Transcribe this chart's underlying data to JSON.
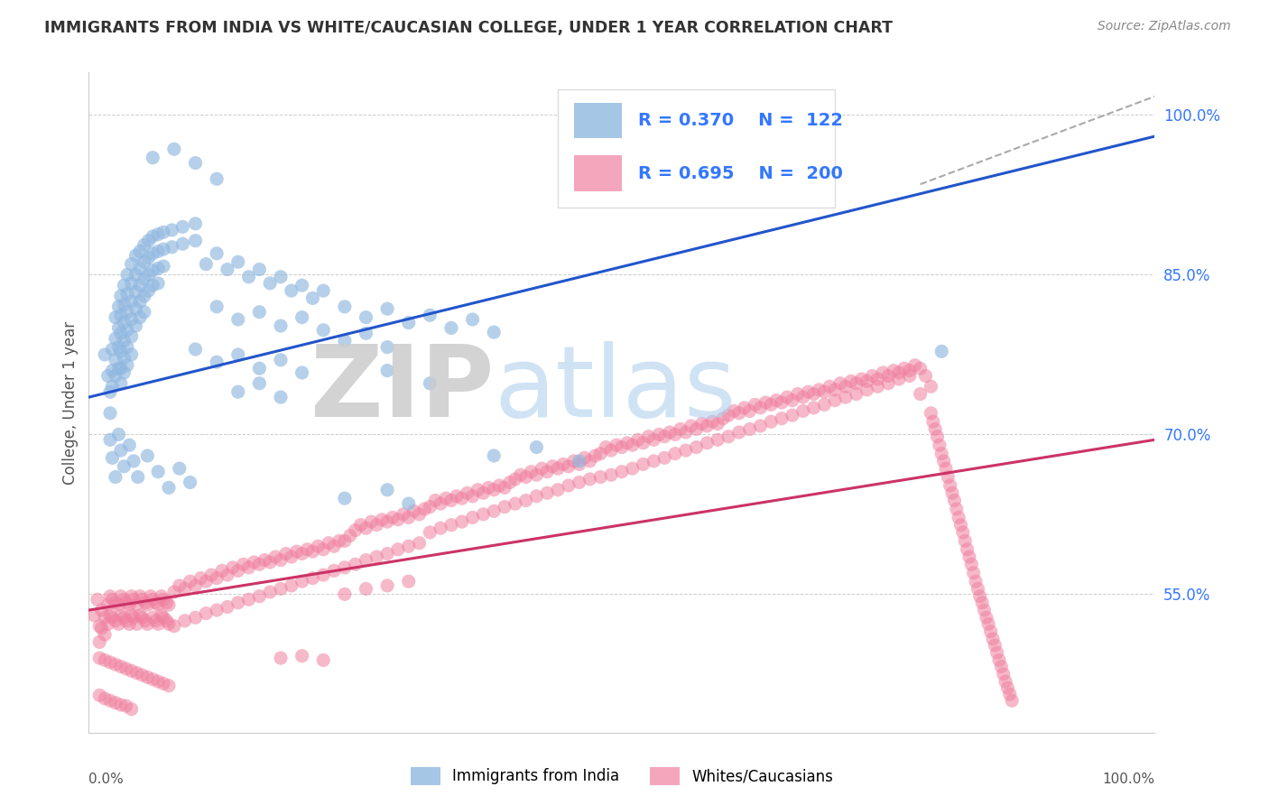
{
  "title": "IMMIGRANTS FROM INDIA VS WHITE/CAUCASIAN COLLEGE, UNDER 1 YEAR CORRELATION CHART",
  "source": "Source: ZipAtlas.com",
  "ylabel": "College, Under 1 year",
  "blue_R": "0.370",
  "blue_N": "122",
  "pink_R": "0.695",
  "pink_N": "200",
  "blue_color": "#90B8E0",
  "pink_color": "#F080A0",
  "blue_line_color": "#2255CC",
  "pink_line_color": "#CC3366",
  "legend_text_color": "#3377FF",
  "background_color": "#FFFFFF",
  "xlim": [
    0.0,
    1.0
  ],
  "ylim": [
    0.42,
    1.04
  ],
  "yticks": [
    0.55,
    0.7,
    0.85,
    1.0
  ],
  "ytick_labels": [
    "55.0%",
    "70.0%",
    "85.0%",
    "100.0%"
  ],
  "blue_line_x": [
    0.0,
    1.0
  ],
  "blue_line_y": [
    0.735,
    0.98
  ],
  "pink_line_x": [
    0.0,
    1.0
  ],
  "pink_line_y": [
    0.535,
    0.695
  ],
  "dashed_line_x": [
    0.78,
    1.02
  ],
  "dashed_line_y": [
    0.935,
    1.025
  ],
  "blue_scatter": [
    [
      0.015,
      0.775
    ],
    [
      0.018,
      0.755
    ],
    [
      0.02,
      0.74
    ],
    [
      0.02,
      0.72
    ],
    [
      0.022,
      0.78
    ],
    [
      0.022,
      0.76
    ],
    [
      0.022,
      0.745
    ],
    [
      0.025,
      0.81
    ],
    [
      0.025,
      0.79
    ],
    [
      0.025,
      0.77
    ],
    [
      0.025,
      0.755
    ],
    [
      0.028,
      0.82
    ],
    [
      0.028,
      0.8
    ],
    [
      0.028,
      0.782
    ],
    [
      0.028,
      0.762
    ],
    [
      0.03,
      0.83
    ],
    [
      0.03,
      0.812
    ],
    [
      0.03,
      0.795
    ],
    [
      0.03,
      0.778
    ],
    [
      0.03,
      0.762
    ],
    [
      0.03,
      0.748
    ],
    [
      0.033,
      0.84
    ],
    [
      0.033,
      0.822
    ],
    [
      0.033,
      0.805
    ],
    [
      0.033,
      0.788
    ],
    [
      0.033,
      0.772
    ],
    [
      0.033,
      0.758
    ],
    [
      0.036,
      0.85
    ],
    [
      0.036,
      0.832
    ],
    [
      0.036,
      0.815
    ],
    [
      0.036,
      0.798
    ],
    [
      0.036,
      0.782
    ],
    [
      0.036,
      0.765
    ],
    [
      0.04,
      0.86
    ],
    [
      0.04,
      0.842
    ],
    [
      0.04,
      0.825
    ],
    [
      0.04,
      0.808
    ],
    [
      0.04,
      0.792
    ],
    [
      0.04,
      0.775
    ],
    [
      0.044,
      0.868
    ],
    [
      0.044,
      0.85
    ],
    [
      0.044,
      0.834
    ],
    [
      0.044,
      0.818
    ],
    [
      0.044,
      0.802
    ],
    [
      0.048,
      0.872
    ],
    [
      0.048,
      0.856
    ],
    [
      0.048,
      0.84
    ],
    [
      0.048,
      0.825
    ],
    [
      0.048,
      0.81
    ],
    [
      0.052,
      0.878
    ],
    [
      0.052,
      0.862
    ],
    [
      0.052,
      0.846
    ],
    [
      0.052,
      0.83
    ],
    [
      0.052,
      0.815
    ],
    [
      0.056,
      0.882
    ],
    [
      0.056,
      0.866
    ],
    [
      0.056,
      0.85
    ],
    [
      0.056,
      0.835
    ],
    [
      0.06,
      0.886
    ],
    [
      0.06,
      0.87
    ],
    [
      0.06,
      0.854
    ],
    [
      0.06,
      0.84
    ],
    [
      0.065,
      0.888
    ],
    [
      0.065,
      0.872
    ],
    [
      0.065,
      0.856
    ],
    [
      0.065,
      0.842
    ],
    [
      0.07,
      0.89
    ],
    [
      0.07,
      0.874
    ],
    [
      0.07,
      0.858
    ],
    [
      0.078,
      0.892
    ],
    [
      0.078,
      0.876
    ],
    [
      0.088,
      0.895
    ],
    [
      0.088,
      0.879
    ],
    [
      0.1,
      0.898
    ],
    [
      0.1,
      0.882
    ],
    [
      0.02,
      0.695
    ],
    [
      0.022,
      0.678
    ],
    [
      0.025,
      0.66
    ],
    [
      0.028,
      0.7
    ],
    [
      0.03,
      0.685
    ],
    [
      0.033,
      0.67
    ],
    [
      0.038,
      0.69
    ],
    [
      0.042,
      0.675
    ],
    [
      0.046,
      0.66
    ],
    [
      0.055,
      0.68
    ],
    [
      0.065,
      0.665
    ],
    [
      0.075,
      0.65
    ],
    [
      0.085,
      0.668
    ],
    [
      0.095,
      0.655
    ],
    [
      0.11,
      0.86
    ],
    [
      0.12,
      0.87
    ],
    [
      0.13,
      0.855
    ],
    [
      0.14,
      0.862
    ],
    [
      0.15,
      0.848
    ],
    [
      0.16,
      0.855
    ],
    [
      0.17,
      0.842
    ],
    [
      0.18,
      0.848
    ],
    [
      0.19,
      0.835
    ],
    [
      0.2,
      0.84
    ],
    [
      0.21,
      0.828
    ],
    [
      0.22,
      0.835
    ],
    [
      0.24,
      0.82
    ],
    [
      0.26,
      0.81
    ],
    [
      0.28,
      0.818
    ],
    [
      0.3,
      0.805
    ],
    [
      0.32,
      0.812
    ],
    [
      0.34,
      0.8
    ],
    [
      0.36,
      0.808
    ],
    [
      0.38,
      0.796
    ],
    [
      0.12,
      0.82
    ],
    [
      0.14,
      0.808
    ],
    [
      0.16,
      0.815
    ],
    [
      0.18,
      0.802
    ],
    [
      0.2,
      0.81
    ],
    [
      0.22,
      0.798
    ],
    [
      0.24,
      0.788
    ],
    [
      0.26,
      0.795
    ],
    [
      0.28,
      0.782
    ],
    [
      0.1,
      0.78
    ],
    [
      0.12,
      0.768
    ],
    [
      0.14,
      0.775
    ],
    [
      0.16,
      0.762
    ],
    [
      0.18,
      0.77
    ],
    [
      0.2,
      0.758
    ],
    [
      0.14,
      0.74
    ],
    [
      0.16,
      0.748
    ],
    [
      0.18,
      0.735
    ],
    [
      0.28,
      0.76
    ],
    [
      0.32,
      0.748
    ],
    [
      0.24,
      0.64
    ],
    [
      0.28,
      0.648
    ],
    [
      0.3,
      0.635
    ],
    [
      0.38,
      0.68
    ],
    [
      0.42,
      0.688
    ],
    [
      0.46,
      0.675
    ],
    [
      0.06,
      0.96
    ],
    [
      0.08,
      0.968
    ],
    [
      0.1,
      0.955
    ],
    [
      0.12,
      0.94
    ],
    [
      0.8,
      0.778
    ]
  ],
  "pink_scatter": [
    [
      0.005,
      0.53
    ],
    [
      0.008,
      0.545
    ],
    [
      0.01,
      0.52
    ],
    [
      0.01,
      0.505
    ],
    [
      0.012,
      0.535
    ],
    [
      0.012,
      0.518
    ],
    [
      0.015,
      0.528
    ],
    [
      0.015,
      0.512
    ],
    [
      0.018,
      0.54
    ],
    [
      0.018,
      0.522
    ],
    [
      0.02,
      0.548
    ],
    [
      0.02,
      0.53
    ],
    [
      0.022,
      0.545
    ],
    [
      0.022,
      0.528
    ],
    [
      0.025,
      0.542
    ],
    [
      0.025,
      0.525
    ],
    [
      0.028,
      0.54
    ],
    [
      0.028,
      0.522
    ],
    [
      0.03,
      0.548
    ],
    [
      0.03,
      0.53
    ],
    [
      0.033,
      0.545
    ],
    [
      0.033,
      0.528
    ],
    [
      0.035,
      0.542
    ],
    [
      0.035,
      0.525
    ],
    [
      0.038,
      0.54
    ],
    [
      0.038,
      0.522
    ],
    [
      0.04,
      0.548
    ],
    [
      0.04,
      0.53
    ],
    [
      0.042,
      0.545
    ],
    [
      0.042,
      0.528
    ],
    [
      0.045,
      0.54
    ],
    [
      0.045,
      0.522
    ],
    [
      0.048,
      0.548
    ],
    [
      0.048,
      0.53
    ],
    [
      0.05,
      0.545
    ],
    [
      0.05,
      0.528
    ],
    [
      0.053,
      0.542
    ],
    [
      0.053,
      0.525
    ],
    [
      0.055,
      0.54
    ],
    [
      0.055,
      0.522
    ],
    [
      0.058,
      0.548
    ],
    [
      0.06,
      0.545
    ],
    [
      0.06,
      0.528
    ],
    [
      0.063,
      0.542
    ],
    [
      0.063,
      0.525
    ],
    [
      0.065,
      0.54
    ],
    [
      0.065,
      0.522
    ],
    [
      0.068,
      0.548
    ],
    [
      0.068,
      0.53
    ],
    [
      0.07,
      0.545
    ],
    [
      0.07,
      0.528
    ],
    [
      0.073,
      0.542
    ],
    [
      0.073,
      0.525
    ],
    [
      0.075,
      0.54
    ],
    [
      0.075,
      0.522
    ],
    [
      0.01,
      0.49
    ],
    [
      0.015,
      0.488
    ],
    [
      0.02,
      0.486
    ],
    [
      0.025,
      0.484
    ],
    [
      0.03,
      0.482
    ],
    [
      0.035,
      0.48
    ],
    [
      0.04,
      0.478
    ],
    [
      0.045,
      0.476
    ],
    [
      0.05,
      0.474
    ],
    [
      0.055,
      0.472
    ],
    [
      0.06,
      0.47
    ],
    [
      0.065,
      0.468
    ],
    [
      0.07,
      0.466
    ],
    [
      0.075,
      0.464
    ],
    [
      0.01,
      0.455
    ],
    [
      0.015,
      0.452
    ],
    [
      0.02,
      0.45
    ],
    [
      0.025,
      0.448
    ],
    [
      0.03,
      0.446
    ],
    [
      0.035,
      0.445
    ],
    [
      0.04,
      0.442
    ],
    [
      0.08,
      0.552
    ],
    [
      0.085,
      0.558
    ],
    [
      0.09,
      0.555
    ],
    [
      0.095,
      0.562
    ],
    [
      0.1,
      0.558
    ],
    [
      0.105,
      0.565
    ],
    [
      0.11,
      0.562
    ],
    [
      0.115,
      0.568
    ],
    [
      0.12,
      0.565
    ],
    [
      0.125,
      0.572
    ],
    [
      0.13,
      0.568
    ],
    [
      0.135,
      0.575
    ],
    [
      0.14,
      0.572
    ],
    [
      0.145,
      0.578
    ],
    [
      0.15,
      0.575
    ],
    [
      0.155,
      0.58
    ],
    [
      0.16,
      0.578
    ],
    [
      0.165,
      0.582
    ],
    [
      0.17,
      0.58
    ],
    [
      0.175,
      0.585
    ],
    [
      0.18,
      0.582
    ],
    [
      0.185,
      0.588
    ],
    [
      0.19,
      0.585
    ],
    [
      0.195,
      0.59
    ],
    [
      0.2,
      0.588
    ],
    [
      0.205,
      0.592
    ],
    [
      0.21,
      0.59
    ],
    [
      0.215,
      0.595
    ],
    [
      0.22,
      0.592
    ],
    [
      0.225,
      0.598
    ],
    [
      0.23,
      0.595
    ],
    [
      0.235,
      0.6
    ],
    [
      0.08,
      0.52
    ],
    [
      0.09,
      0.525
    ],
    [
      0.1,
      0.528
    ],
    [
      0.11,
      0.532
    ],
    [
      0.12,
      0.535
    ],
    [
      0.13,
      0.538
    ],
    [
      0.14,
      0.542
    ],
    [
      0.15,
      0.545
    ],
    [
      0.16,
      0.548
    ],
    [
      0.17,
      0.552
    ],
    [
      0.18,
      0.555
    ],
    [
      0.19,
      0.558
    ],
    [
      0.2,
      0.562
    ],
    [
      0.21,
      0.565
    ],
    [
      0.22,
      0.568
    ],
    [
      0.23,
      0.572
    ],
    [
      0.24,
      0.6
    ],
    [
      0.245,
      0.605
    ],
    [
      0.25,
      0.61
    ],
    [
      0.255,
      0.615
    ],
    [
      0.26,
      0.612
    ],
    [
      0.265,
      0.618
    ],
    [
      0.27,
      0.615
    ],
    [
      0.275,
      0.62
    ],
    [
      0.28,
      0.618
    ],
    [
      0.285,
      0.622
    ],
    [
      0.29,
      0.62
    ],
    [
      0.295,
      0.625
    ],
    [
      0.3,
      0.622
    ],
    [
      0.305,
      0.628
    ],
    [
      0.31,
      0.625
    ],
    [
      0.315,
      0.63
    ],
    [
      0.24,
      0.575
    ],
    [
      0.25,
      0.578
    ],
    [
      0.26,
      0.582
    ],
    [
      0.27,
      0.585
    ],
    [
      0.28,
      0.588
    ],
    [
      0.29,
      0.592
    ],
    [
      0.3,
      0.595
    ],
    [
      0.31,
      0.598
    ],
    [
      0.24,
      0.55
    ],
    [
      0.26,
      0.555
    ],
    [
      0.28,
      0.558
    ],
    [
      0.3,
      0.562
    ],
    [
      0.18,
      0.49
    ],
    [
      0.2,
      0.492
    ],
    [
      0.22,
      0.488
    ],
    [
      0.32,
      0.632
    ],
    [
      0.325,
      0.638
    ],
    [
      0.33,
      0.635
    ],
    [
      0.335,
      0.64
    ],
    [
      0.34,
      0.638
    ],
    [
      0.345,
      0.642
    ],
    [
      0.35,
      0.64
    ],
    [
      0.355,
      0.645
    ],
    [
      0.36,
      0.642
    ],
    [
      0.365,
      0.648
    ],
    [
      0.37,
      0.645
    ],
    [
      0.375,
      0.65
    ],
    [
      0.38,
      0.648
    ],
    [
      0.385,
      0.652
    ],
    [
      0.39,
      0.65
    ],
    [
      0.395,
      0.655
    ],
    [
      0.32,
      0.608
    ],
    [
      0.33,
      0.612
    ],
    [
      0.34,
      0.615
    ],
    [
      0.35,
      0.618
    ],
    [
      0.36,
      0.622
    ],
    [
      0.37,
      0.625
    ],
    [
      0.38,
      0.628
    ],
    [
      0.39,
      0.632
    ],
    [
      0.4,
      0.658
    ],
    [
      0.405,
      0.662
    ],
    [
      0.41,
      0.66
    ],
    [
      0.415,
      0.665
    ],
    [
      0.42,
      0.662
    ],
    [
      0.425,
      0.668
    ],
    [
      0.43,
      0.665
    ],
    [
      0.435,
      0.67
    ],
    [
      0.44,
      0.668
    ],
    [
      0.445,
      0.672
    ],
    [
      0.45,
      0.67
    ],
    [
      0.455,
      0.675
    ],
    [
      0.46,
      0.672
    ],
    [
      0.465,
      0.678
    ],
    [
      0.47,
      0.675
    ],
    [
      0.475,
      0.68
    ],
    [
      0.4,
      0.635
    ],
    [
      0.41,
      0.638
    ],
    [
      0.42,
      0.642
    ],
    [
      0.43,
      0.645
    ],
    [
      0.44,
      0.648
    ],
    [
      0.45,
      0.652
    ],
    [
      0.46,
      0.655
    ],
    [
      0.47,
      0.658
    ],
    [
      0.48,
      0.682
    ],
    [
      0.485,
      0.688
    ],
    [
      0.49,
      0.685
    ],
    [
      0.495,
      0.69
    ],
    [
      0.5,
      0.688
    ],
    [
      0.505,
      0.692
    ],
    [
      0.51,
      0.69
    ],
    [
      0.515,
      0.695
    ],
    [
      0.52,
      0.692
    ],
    [
      0.525,
      0.698
    ],
    [
      0.53,
      0.695
    ],
    [
      0.535,
      0.7
    ],
    [
      0.54,
      0.698
    ],
    [
      0.545,
      0.702
    ],
    [
      0.55,
      0.7
    ],
    [
      0.555,
      0.705
    ],
    [
      0.56,
      0.702
    ],
    [
      0.565,
      0.708
    ],
    [
      0.57,
      0.705
    ],
    [
      0.575,
      0.71
    ],
    [
      0.58,
      0.708
    ],
    [
      0.585,
      0.712
    ],
    [
      0.59,
      0.71
    ],
    [
      0.595,
      0.715
    ],
    [
      0.48,
      0.66
    ],
    [
      0.49,
      0.662
    ],
    [
      0.5,
      0.665
    ],
    [
      0.51,
      0.668
    ],
    [
      0.52,
      0.672
    ],
    [
      0.53,
      0.675
    ],
    [
      0.54,
      0.678
    ],
    [
      0.55,
      0.682
    ],
    [
      0.56,
      0.685
    ],
    [
      0.57,
      0.688
    ],
    [
      0.58,
      0.692
    ],
    [
      0.59,
      0.695
    ],
    [
      0.6,
      0.718
    ],
    [
      0.605,
      0.722
    ],
    [
      0.61,
      0.72
    ],
    [
      0.615,
      0.725
    ],
    [
      0.62,
      0.722
    ],
    [
      0.625,
      0.728
    ],
    [
      0.63,
      0.725
    ],
    [
      0.635,
      0.73
    ],
    [
      0.64,
      0.728
    ],
    [
      0.645,
      0.732
    ],
    [
      0.65,
      0.73
    ],
    [
      0.655,
      0.735
    ],
    [
      0.66,
      0.732
    ],
    [
      0.665,
      0.738
    ],
    [
      0.67,
      0.735
    ],
    [
      0.675,
      0.74
    ],
    [
      0.68,
      0.738
    ],
    [
      0.685,
      0.742
    ],
    [
      0.69,
      0.74
    ],
    [
      0.695,
      0.745
    ],
    [
      0.7,
      0.742
    ],
    [
      0.705,
      0.748
    ],
    [
      0.71,
      0.745
    ],
    [
      0.715,
      0.75
    ],
    [
      0.72,
      0.748
    ],
    [
      0.725,
      0.752
    ],
    [
      0.73,
      0.75
    ],
    [
      0.735,
      0.755
    ],
    [
      0.74,
      0.752
    ],
    [
      0.745,
      0.758
    ],
    [
      0.75,
      0.755
    ],
    [
      0.755,
      0.76
    ],
    [
      0.76,
      0.758
    ],
    [
      0.765,
      0.762
    ],
    [
      0.77,
      0.76
    ],
    [
      0.775,
      0.765
    ],
    [
      0.78,
      0.762
    ],
    [
      0.785,
      0.755
    ],
    [
      0.79,
      0.745
    ],
    [
      0.6,
      0.698
    ],
    [
      0.61,
      0.702
    ],
    [
      0.62,
      0.705
    ],
    [
      0.63,
      0.708
    ],
    [
      0.64,
      0.712
    ],
    [
      0.65,
      0.715
    ],
    [
      0.66,
      0.718
    ],
    [
      0.67,
      0.722
    ],
    [
      0.68,
      0.725
    ],
    [
      0.69,
      0.728
    ],
    [
      0.7,
      0.732
    ],
    [
      0.71,
      0.735
    ],
    [
      0.72,
      0.738
    ],
    [
      0.73,
      0.742
    ],
    [
      0.74,
      0.745
    ],
    [
      0.75,
      0.748
    ],
    [
      0.76,
      0.752
    ],
    [
      0.77,
      0.755
    ],
    [
      0.78,
      0.738
    ],
    [
      0.79,
      0.72
    ],
    [
      0.792,
      0.712
    ],
    [
      0.794,
      0.705
    ],
    [
      0.796,
      0.698
    ],
    [
      0.798,
      0.69
    ],
    [
      0.8,
      0.682
    ],
    [
      0.802,
      0.675
    ],
    [
      0.804,
      0.668
    ],
    [
      0.806,
      0.66
    ],
    [
      0.808,
      0.652
    ],
    [
      0.81,
      0.645
    ],
    [
      0.812,
      0.638
    ],
    [
      0.814,
      0.63
    ],
    [
      0.816,
      0.622
    ],
    [
      0.818,
      0.615
    ],
    [
      0.82,
      0.608
    ],
    [
      0.822,
      0.6
    ],
    [
      0.824,
      0.592
    ],
    [
      0.826,
      0.585
    ],
    [
      0.828,
      0.578
    ],
    [
      0.83,
      0.57
    ],
    [
      0.832,
      0.562
    ],
    [
      0.834,
      0.555
    ],
    [
      0.836,
      0.548
    ],
    [
      0.838,
      0.542
    ],
    [
      0.84,
      0.535
    ],
    [
      0.842,
      0.528
    ],
    [
      0.844,
      0.522
    ],
    [
      0.846,
      0.515
    ],
    [
      0.848,
      0.508
    ],
    [
      0.85,
      0.502
    ],
    [
      0.852,
      0.495
    ],
    [
      0.854,
      0.488
    ],
    [
      0.856,
      0.482
    ],
    [
      0.858,
      0.475
    ],
    [
      0.86,
      0.468
    ],
    [
      0.862,
      0.462
    ],
    [
      0.864,
      0.456
    ],
    [
      0.866,
      0.45
    ]
  ]
}
